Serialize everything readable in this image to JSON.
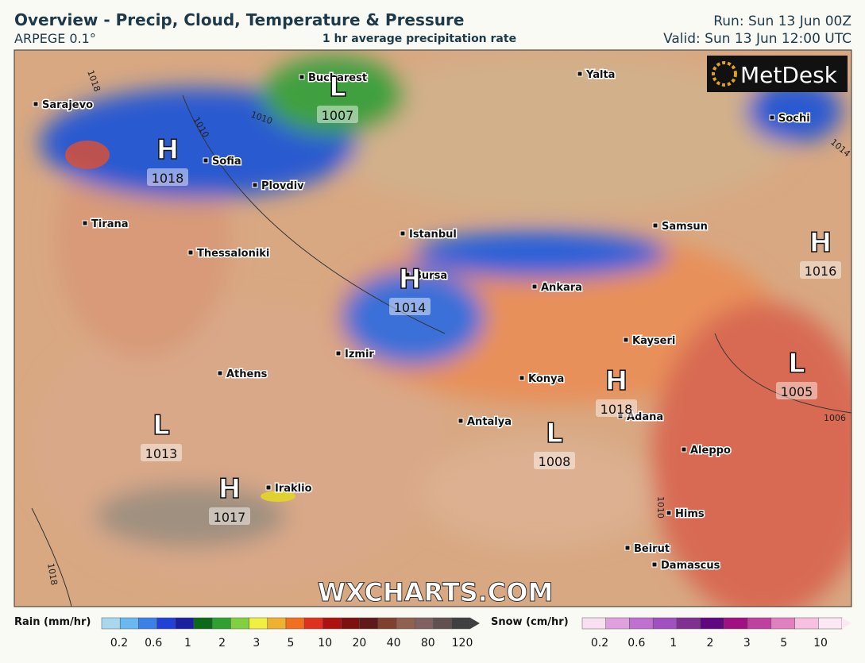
{
  "header": {
    "title": "Overview - Precip, Cloud, Temperature & Pressure",
    "model": "ARPEGE 0.1°",
    "subtitle": "1 hr average precipitation rate",
    "run": "Run: Sun 13 Jun 00Z",
    "valid": "Valid: Sun 13 Jun 12:00 UTC"
  },
  "logo": "MetDesk",
  "watermark": "WXCHARTS.COM",
  "cities": [
    "Bucharest",
    "Sarajevo",
    "Yalta",
    "Sochi",
    "Sofia",
    "Plovdiv",
    "Tirana",
    "Istanbul",
    "Samsun",
    "Thessaloniki",
    "Bursa",
    "Ankara",
    "Kayseri",
    "Izmir",
    "Athens",
    "Konya",
    "Adana",
    "Antalya",
    "Aleppo",
    "Iraklio",
    "Hims",
    "Beirut",
    "Damascus"
  ],
  "pressure_centers": [
    {
      "type": "H",
      "value": 1018
    },
    {
      "type": "L",
      "value": 1007
    },
    {
      "type": "H",
      "value": 1014
    },
    {
      "type": "H",
      "value": 1016
    },
    {
      "type": "L",
      "value": 1005
    },
    {
      "type": "H",
      "value": 1018
    },
    {
      "type": "L",
      "value": 1013
    },
    {
      "type": "L",
      "value": 1008
    },
    {
      "type": "H",
      "value": 1017
    }
  ],
  "isobar_labels": [
    1018,
    1010,
    1010,
    1014,
    1006,
    1010,
    1018
  ],
  "legend": {
    "rain": {
      "label": "Rain (mm/hr)",
      "ticks": [
        0.2,
        0.6,
        1,
        2,
        3,
        5,
        10,
        20,
        40,
        80,
        120
      ],
      "colors": [
        "#a8d8f0",
        "#6ab8f0",
        "#3a80e8",
        "#2040d8",
        "#1a20a0",
        "#0a6a1a",
        "#30a030",
        "#80d040",
        "#f0f040",
        "#f0b030",
        "#f07020",
        "#e03020",
        "#b01010",
        "#801010",
        "#601818",
        "#804030",
        "#906050",
        "#806060",
        "#605050",
        "#404040"
      ]
    },
    "snow": {
      "label": "Snow (cm/hr)",
      "ticks": [
        0.2,
        0.6,
        1,
        2,
        3,
        5,
        10
      ],
      "colors": [
        "#f8e0f0",
        "#e0a0e0",
        "#c070d0",
        "#a050c0",
        "#803090",
        "#600880",
        "#a01080",
        "#c040a0",
        "#e080c0",
        "#f8c0e0",
        "#fce8f4"
      ]
    }
  }
}
